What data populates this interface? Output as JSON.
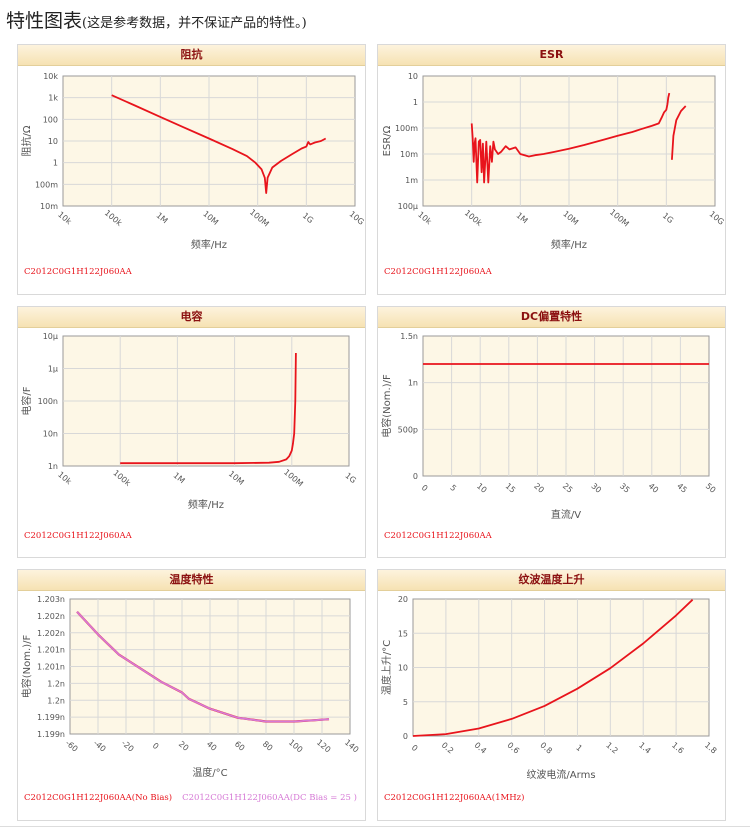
{
  "page": {
    "title": "特性图表",
    "subtitle": "(这是参考数据，并不保证产品的特性。)"
  },
  "colors": {
    "accent": "#e8141c",
    "bias": "#d67ad6",
    "plot_bg": "#fdf7e6",
    "grid": "#d8d8d8",
    "header_text": "#8b1010"
  },
  "chart_data": [
    {
      "id": "impedance",
      "type": "line",
      "title": "阻抗",
      "xlabel": "频率/Hz",
      "ylabel": "阻抗/Ω",
      "xscale": "log",
      "yscale": "log",
      "xlim": [
        10000,
        10000000000
      ],
      "ylim": [
        0.01,
        10000
      ],
      "xticks": [
        10000,
        100000,
        1000000,
        10000000,
        100000000,
        1000000000,
        10000000000
      ],
      "xticklabels": [
        "10k",
        "100k",
        "1M",
        "10M",
        "100M",
        "1G",
        "10G"
      ],
      "yticks": [
        0.01,
        0.1,
        1,
        10,
        100,
        1000,
        10000
      ],
      "yticklabels": [
        "10m",
        "100m",
        "1",
        "10",
        "100",
        "1k",
        "10k"
      ],
      "series": [
        {
          "color": "#e8141c",
          "x": [
            100000,
            300000,
            1000000,
            3000000,
            10000000,
            30000000,
            60000000,
            90000000,
            120000000,
            140000000,
            150000000,
            160000000,
            200000000,
            300000000,
            500000000,
            800000000,
            1000000000,
            1100000000,
            1200000000,
            1500000000,
            2000000000,
            2500000000
          ],
          "y": [
            1300,
            433,
            130,
            43,
            13,
            4.3,
            2.0,
            1.0,
            0.5,
            0.2,
            0.04,
            0.2,
            0.6,
            1.2,
            2.4,
            4.5,
            5.5,
            9,
            7,
            8.5,
            10,
            13
          ]
        }
      ],
      "legend": [
        {
          "text": "C2012C0G1H122J060AA",
          "color": "#e8141c"
        }
      ],
      "grid": true
    },
    {
      "id": "esr",
      "type": "line",
      "title": "ESR",
      "xlabel": "频率/Hz",
      "ylabel": "ESR/Ω",
      "xscale": "log",
      "yscale": "log",
      "xlim": [
        10000,
        10000000000
      ],
      "ylim": [
        0.0001,
        10
      ],
      "xticks": [
        10000,
        100000,
        1000000,
        10000000,
        100000000,
        1000000000,
        10000000000
      ],
      "xticklabels": [
        "10k",
        "100k",
        "1M",
        "10M",
        "100M",
        "1G",
        "10G"
      ],
      "yticks": [
        0.0001,
        0.001,
        0.01,
        0.1,
        1,
        10
      ],
      "yticklabels": [
        "100μ",
        "1m",
        "10m",
        "100m",
        "1",
        "10"
      ],
      "series": [
        {
          "color": "#e8141c",
          "x": [
            100000,
            105000,
            110000,
            115000,
            120000,
            130000,
            140000,
            150000,
            160000,
            170000,
            180000,
            200000,
            220000,
            240000,
            260000,
            280000,
            300000,
            350000,
            400000,
            500000,
            600000,
            800000,
            1000000,
            1500000,
            2000000,
            3000000,
            5000000,
            10000000,
            20000000,
            50000000,
            100000000,
            200000000,
            300000000,
            500000000,
            700000000,
            800000000,
            900000000,
            1000000000,
            1050000000,
            1100000000,
            1150000000
          ],
          "y": [
            0.15,
            0.04,
            0.005,
            0.025,
            0.04,
            0.0008,
            0.03,
            0.035,
            0.002,
            0.025,
            0.0008,
            0.03,
            0.0008,
            0.02,
            0.005,
            0.03,
            0.015,
            0.01,
            0.012,
            0.02,
            0.015,
            0.018,
            0.01,
            0.008,
            0.009,
            0.01,
            0.012,
            0.016,
            0.022,
            0.035,
            0.05,
            0.07,
            0.09,
            0.12,
            0.15,
            0.25,
            0.4,
            0.5,
            0.8,
            1.5,
            2.2
          ]
        },
        {
          "color": "#e8141c",
          "x": [
            1300000000,
            1400000000,
            1600000000,
            2000000000,
            2500000000
          ],
          "y": [
            0.006,
            0.05,
            0.2,
            0.45,
            0.7
          ]
        }
      ],
      "legend": [
        {
          "text": "C2012C0G1H122J060AA",
          "color": "#e8141c"
        }
      ],
      "grid": true
    },
    {
      "id": "capacitance",
      "type": "line",
      "title": "电容",
      "xlabel": "频率/Hz",
      "ylabel": "电容/F",
      "xscale": "log",
      "yscale": "log",
      "xlim": [
        10000,
        1000000000
      ],
      "ylim": [
        1e-09,
        1e-05
      ],
      "xticks": [
        10000,
        100000,
        1000000,
        10000000,
        100000000,
        1000000000
      ],
      "xticklabels": [
        "10k",
        "100k",
        "1M",
        "10M",
        "100M",
        "1G"
      ],
      "yticks": [
        1e-09,
        1e-08,
        1e-07,
        1e-06,
        1e-05
      ],
      "yticklabels": [
        "1n",
        "10n",
        "100n",
        "1μ",
        "10μ"
      ],
      "series": [
        {
          "color": "#e8141c",
          "x": [
            100000,
            1000000,
            10000000,
            40000000,
            60000000,
            80000000,
            90000000,
            100000000,
            105000000,
            110000000,
            115000000,
            118000000
          ],
          "y": [
            1.22e-09,
            1.22e-09,
            1.22e-09,
            1.26e-09,
            1.35e-09,
            1.6e-09,
            2e-09,
            3e-09,
            5e-09,
            1e-08,
            1e-07,
            3e-06
          ]
        }
      ],
      "legend": [
        {
          "text": "C2012C0G1H122J060AA",
          "color": "#e8141c"
        }
      ],
      "grid": true
    },
    {
      "id": "dc-bias",
      "type": "line",
      "title": "DC偏置特性",
      "xlabel": "直流/V",
      "ylabel": "电容(Nom.)/F",
      "xscale": "linear",
      "yscale": "linear",
      "xlim": [
        0,
        50
      ],
      "ylim": [
        0,
        1.5e-09
      ],
      "xticks": [
        0,
        5,
        10,
        15,
        20,
        25,
        30,
        35,
        40,
        45,
        50
      ],
      "xticklabels": [
        "0",
        "5",
        "10",
        "15",
        "20",
        "25",
        "30",
        "35",
        "40",
        "45",
        "50"
      ],
      "yticks": [
        0,
        5e-10,
        1e-09,
        1.5e-09
      ],
      "yticklabels": [
        "0",
        "500p",
        "1n",
        "1.5n"
      ],
      "series": [
        {
          "color": "#e8141c",
          "x": [
            0,
            50
          ],
          "y": [
            1.2e-09,
            1.2e-09
          ]
        }
      ],
      "legend": [
        {
          "text": "C2012C0G1H122J060AA",
          "color": "#e8141c"
        }
      ],
      "grid": true
    },
    {
      "id": "temperature",
      "type": "line",
      "title": "温度特性",
      "xlabel": "温度/°C",
      "ylabel": "电容(Nom.)/F",
      "xscale": "linear",
      "yscale": "linear",
      "xlim": [
        -60,
        140
      ],
      "ylim": [
        1.199e-09,
        1.203e-09
      ],
      "xticks": [
        -60,
        -40,
        -20,
        0,
        20,
        40,
        60,
        80,
        100,
        120,
        140
      ],
      "xticklabels": [
        "-60",
        "-40",
        "-20",
        "0",
        "20",
        "40",
        "60",
        "80",
        "100",
        "120",
        "140"
      ],
      "yticks": [
        1.199e-09,
        1.1995e-09,
        1.2e-09,
        1.2005e-09,
        1.201e-09,
        1.2015e-09,
        1.202e-09,
        1.2025e-09,
        1.203e-09
      ],
      "yticklabels": [
        "1.199n",
        "1.199n",
        "1.2n",
        "1.2n",
        "1.201n",
        "1.201n",
        "1.202n",
        "1.202n",
        "1.203n"
      ],
      "series": [
        {
          "color": "#e8141c",
          "x": [
            -55,
            -40,
            -25,
            -10,
            5,
            20,
            25,
            40,
            60,
            80,
            100,
            115,
            125
          ],
          "y": [
            1.20262e-09,
            1.20195e-09,
            1.20135e-09,
            1.20095e-09,
            1.20055e-09,
            1.20023e-09,
            1.20004e-09,
            1.19975e-09,
            1.19948e-09,
            1.19937e-09,
            1.19937e-09,
            1.19941e-09,
            1.19944e-09
          ]
        },
        {
          "color": "#d67ad6",
          "x": [
            -55,
            -40,
            -25,
            -10,
            5,
            20,
            25,
            40,
            60,
            80,
            100,
            115,
            125
          ],
          "y": [
            1.20262e-09,
            1.20195e-09,
            1.20135e-09,
            1.20095e-09,
            1.20055e-09,
            1.20023e-09,
            1.20004e-09,
            1.19975e-09,
            1.19948e-09,
            1.19937e-09,
            1.19937e-09,
            1.19941e-09,
            1.19944e-09
          ]
        }
      ],
      "legend": [
        {
          "text": "C2012C0G1H122J060AA(No Bias)",
          "color": "#e8141c"
        },
        {
          "text": "C2012C0G1H122J060AA(DC Bias = 25 )",
          "color": "#d67ad6"
        }
      ],
      "grid": true
    },
    {
      "id": "ripple-temp",
      "type": "line",
      "title": "纹波温度上升",
      "xlabel": "纹波电流/Arms",
      "ylabel": "温度上升/°C",
      "xscale": "linear",
      "yscale": "linear",
      "xlim": [
        0,
        1.8
      ],
      "ylim": [
        0,
        20
      ],
      "xticks": [
        0,
        0.2,
        0.4,
        0.6,
        0.8,
        1.0,
        1.2,
        1.4,
        1.6,
        1.8
      ],
      "xticklabels": [
        "0",
        "0.2",
        "0.4",
        "0.6",
        "0.8",
        "1",
        "1.2",
        "1.4",
        "1.6",
        "1.8"
      ],
      "yticks": [
        0,
        5,
        10,
        15,
        20
      ],
      "yticklabels": [
        "0",
        "5",
        "10",
        "15",
        "20"
      ],
      "series": [
        {
          "color": "#e8141c",
          "x": [
            0,
            0.2,
            0.4,
            0.6,
            0.8,
            1.0,
            1.2,
            1.4,
            1.6,
            1.7
          ],
          "y": [
            0,
            0.28,
            1.1,
            2.5,
            4.4,
            6.9,
            9.9,
            13.5,
            17.6,
            19.9
          ]
        }
      ],
      "legend": [
        {
          "text": "C2012C0G1H122J060AA(1MHz)",
          "color": "#e8141c"
        }
      ],
      "grid": true
    }
  ]
}
